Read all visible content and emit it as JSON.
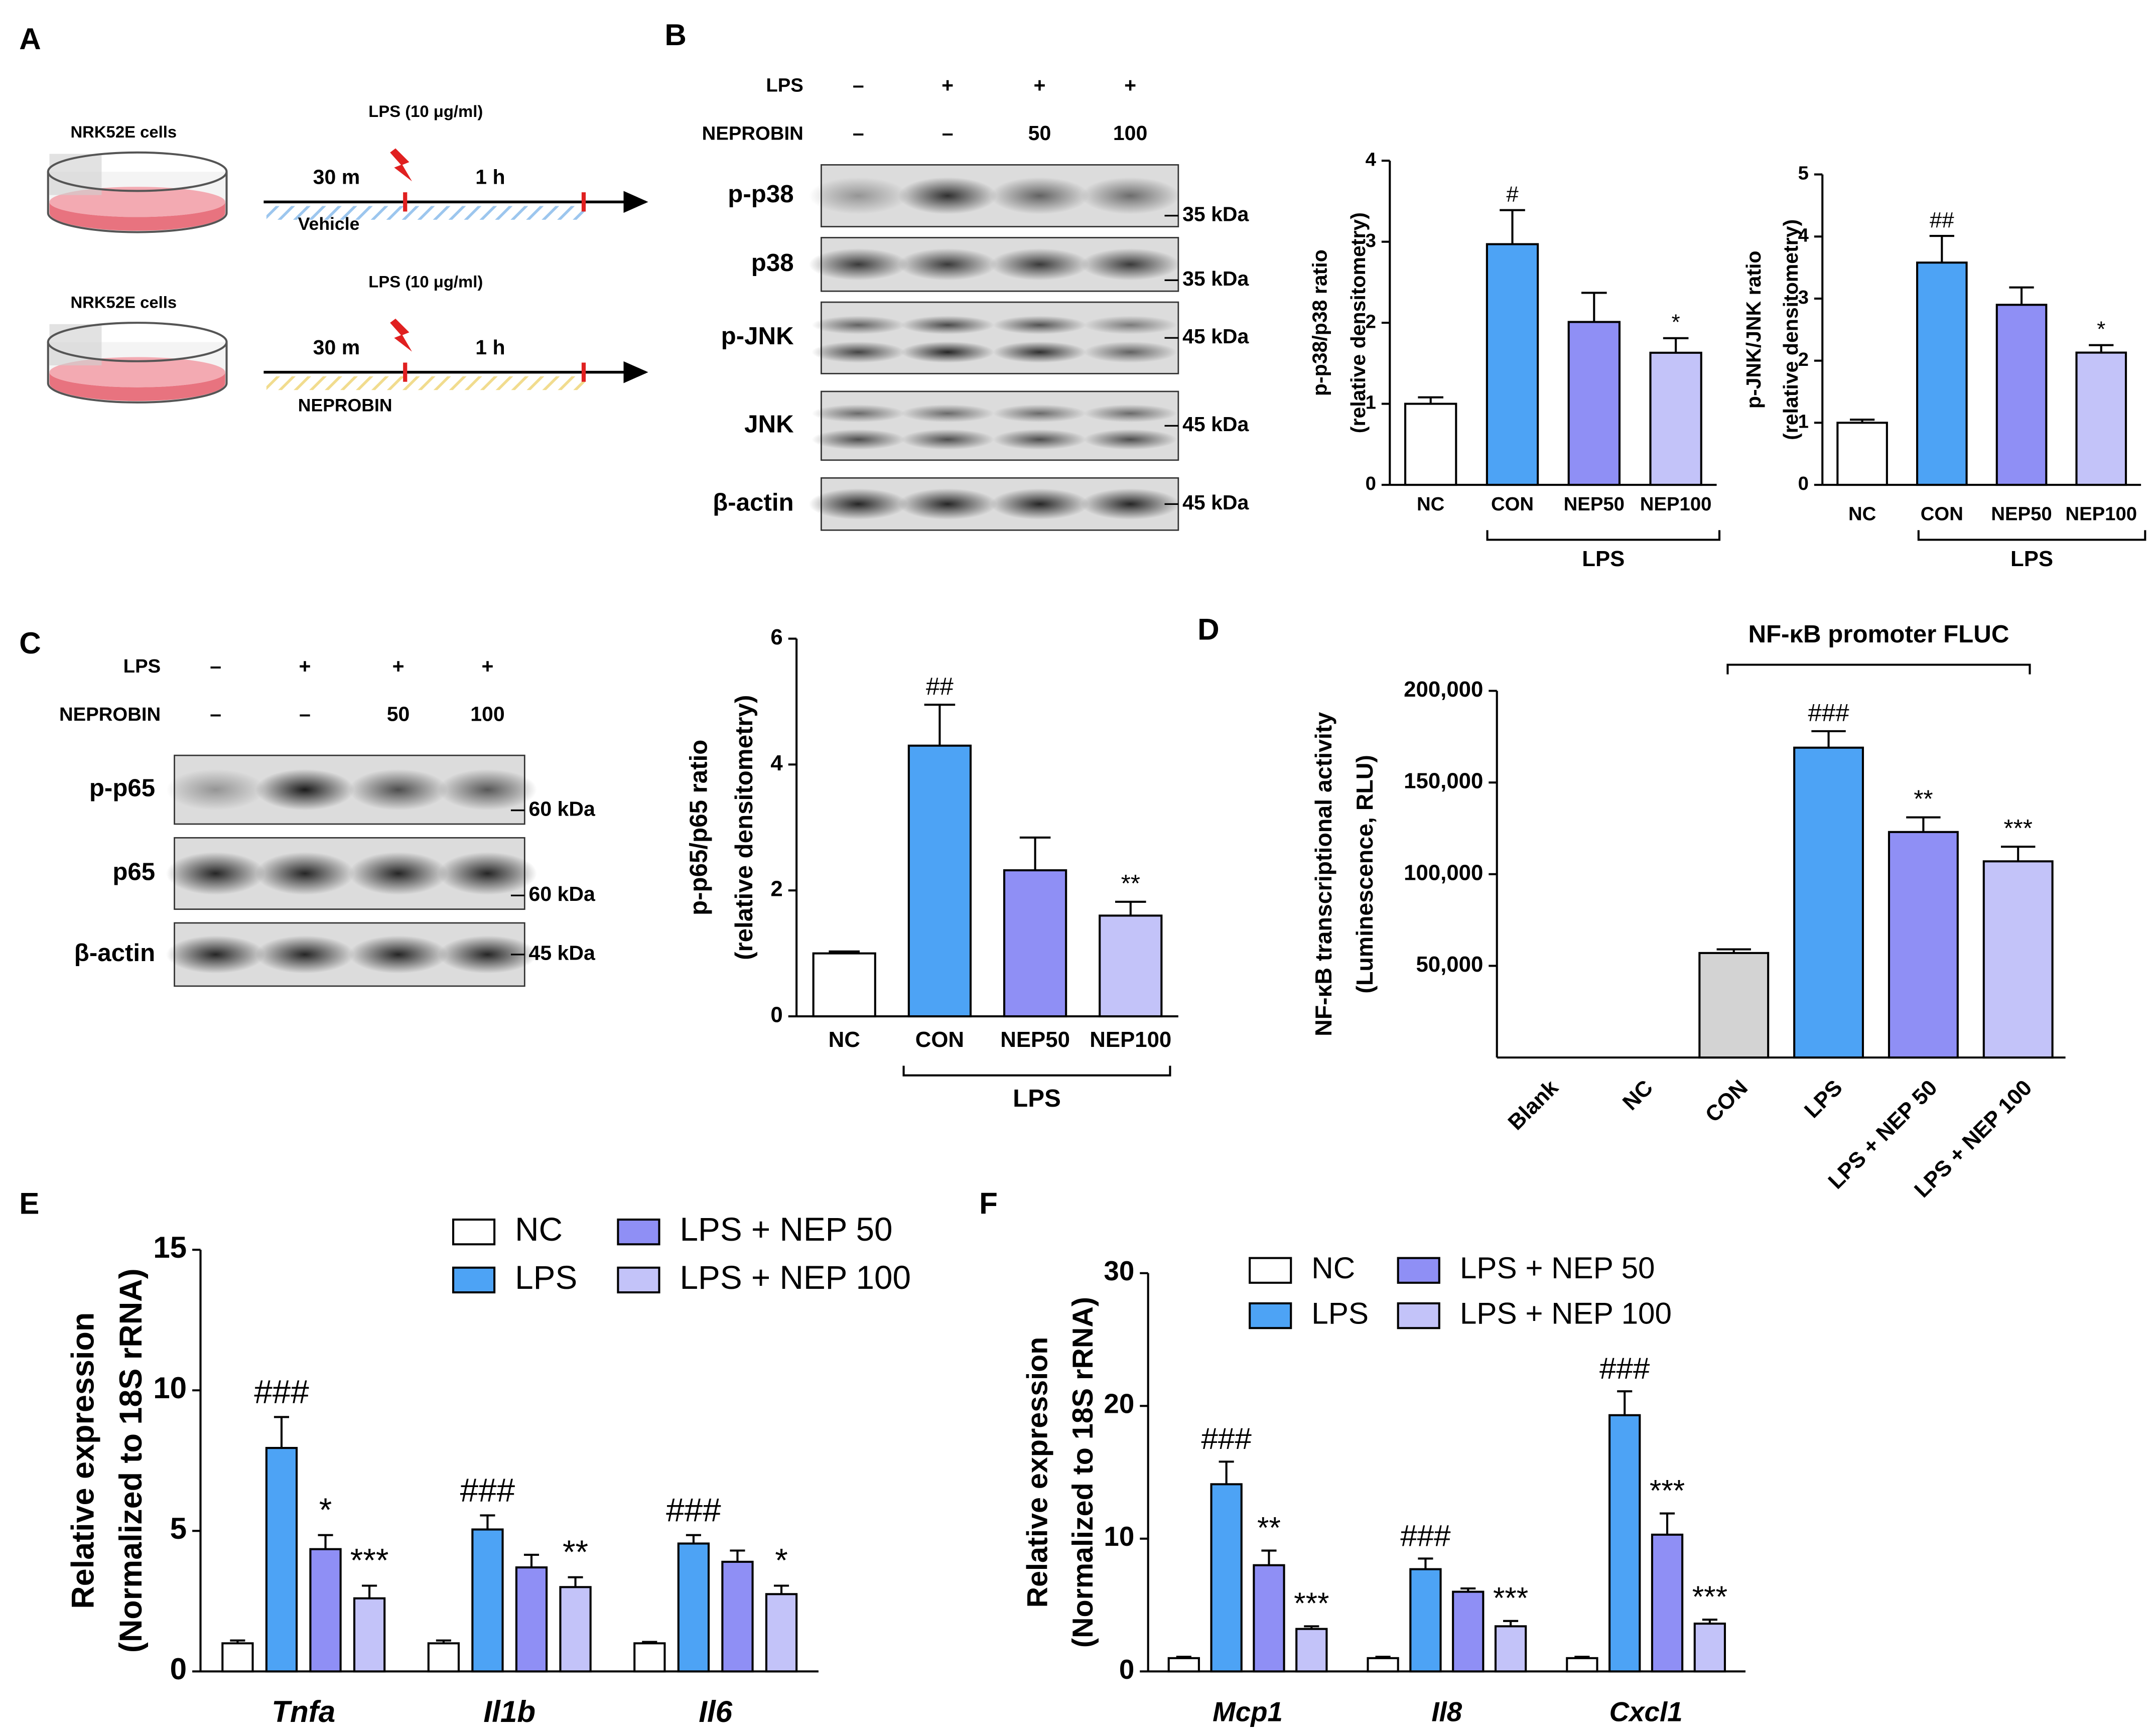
{
  "panel_labels": [
    "A",
    "B",
    "C",
    "D",
    "E",
    "F"
  ],
  "schematic": {
    "steps": [
      {
        "cells": "NRK52E cells",
        "treatment": "LPS (10 μg/ml)",
        "pre": "30 m",
        "post": "1 h",
        "agent": "Vehicle"
      },
      {
        "cells": "NRK52E cells",
        "treatment": "LPS (10 μg/ml)",
        "pre": "30 m",
        "post": "1 h",
        "agent": "NEPROBIN"
      }
    ]
  },
  "blots": [
    {
      "conditions": [
        {
          "name": "LPS",
          "lanes": [
            "–",
            "+",
            "+",
            "+"
          ]
        },
        {
          "name": "NEPROBIN",
          "lanes": [
            "–",
            "–",
            "50",
            "100"
          ]
        }
      ],
      "rows": [
        {
          "name": "p-p38",
          "size": "35 kDa"
        },
        {
          "name": "p38",
          "size": "35 kDa"
        },
        {
          "name": "p-JNK",
          "size": "45 kDa"
        },
        {
          "name": "JNK",
          "size": "45 kDa"
        },
        {
          "name": "β-actin",
          "size": "45 kDa"
        }
      ]
    },
    {
      "conditions": [
        {
          "name": "LPS",
          "lanes": [
            "–",
            "+",
            "+",
            "+"
          ]
        },
        {
          "name": "NEPROBIN",
          "lanes": [
            "–",
            "–",
            "50",
            "100"
          ]
        }
      ],
      "rows": [
        {
          "name": "p-p65",
          "size": "60 kDa"
        },
        {
          "name": "p65",
          "size": "60 kDa"
        },
        {
          "name": "β-actin",
          "size": "45 kDa"
        }
      ]
    }
  ],
  "chart_data": [
    {
      "type": "bar",
      "ylabel": [
        "p-p38/p38 ratio",
        "(relative densitometry)"
      ],
      "categories": [
        "NC",
        "CON",
        "NEP50",
        "NEP100"
      ],
      "values": [
        1.0,
        2.97,
        2.01,
        1.63
      ],
      "errors": [
        0.08,
        0.42,
        0.36,
        0.18
      ],
      "annotations": [
        null,
        "#",
        null,
        "*"
      ],
      "colors": [
        "#ffffff",
        "#4da3f5",
        "#8f8ff5",
        "#c3c3f9"
      ],
      "ylim": [
        0,
        4
      ],
      "yticks": [
        0,
        1,
        2,
        3,
        4
      ],
      "group_label": "LPS"
    },
    {
      "type": "bar",
      "ylabel": [
        "p-JNK/JNK ratio",
        "(relative densitometry)"
      ],
      "categories": [
        "NC",
        "CON",
        "NEP50",
        "NEP100"
      ],
      "values": [
        1.0,
        3.58,
        2.9,
        2.13
      ],
      "errors": [
        0.05,
        0.43,
        0.28,
        0.12
      ],
      "annotations": [
        null,
        "##",
        null,
        "*"
      ],
      "colors": [
        "#ffffff",
        "#4da3f5",
        "#8f8ff5",
        "#c3c3f9"
      ],
      "ylim": [
        0,
        5
      ],
      "yticks": [
        0,
        1,
        2,
        3,
        4,
        5
      ],
      "group_label": "LPS"
    },
    {
      "type": "bar",
      "ylabel": [
        "p-p65/p65 ratio",
        "(relative densitometry)"
      ],
      "categories": [
        "NC",
        "CON",
        "NEP50",
        "NEP100"
      ],
      "values": [
        1.0,
        4.3,
        2.32,
        1.6
      ],
      "errors": [
        0.03,
        0.65,
        0.52,
        0.22
      ],
      "annotations": [
        null,
        "##",
        null,
        "**"
      ],
      "colors": [
        "#ffffff",
        "#4da3f5",
        "#8f8ff5",
        "#c3c3f9"
      ],
      "ylim": [
        0,
        6
      ],
      "yticks": [
        0,
        2,
        4,
        6
      ],
      "group_label": "LPS"
    },
    {
      "type": "bar",
      "ylabel": [
        "NF-κB transcriptional activity",
        "(Luminescence, RLU)"
      ],
      "categories": [
        "Blank",
        "NC",
        "CON",
        "LPS",
        "LPS + NEP 50",
        "LPS + NEP 100"
      ],
      "values": [
        0,
        0,
        57000,
        169000,
        123000,
        107000
      ],
      "errors": [
        null,
        null,
        2000,
        9000,
        8000,
        8000
      ],
      "annotations": [
        null,
        null,
        null,
        "###",
        "**",
        "***"
      ],
      "colors": [
        "#ffffff",
        "#ffffff",
        "#d3d3d3",
        "#4da3f5",
        "#8f8ff5",
        "#c3c3f9"
      ],
      "ylim": [
        0,
        200000
      ],
      "yticks": [
        {
          "value": 50000,
          "label": "50,000"
        },
        {
          "value": 100000,
          "label": "100,000"
        },
        {
          "value": 150000,
          "label": "150,000"
        },
        {
          "value": 200000,
          "label": "200,000"
        }
      ],
      "group_label": "NF-κB promoter FLUC"
    },
    {
      "type": "bar",
      "ylabel": [
        "Relative expression",
        "(Normalized to 18S rRNA)"
      ],
      "categories": [
        "Tnfa",
        "Il1b",
        "Il6"
      ],
      "series": [
        {
          "name": "NC",
          "color": "#ffffff",
          "values": [
            1.0,
            1.0,
            1.0
          ],
          "errors": [
            0.1,
            0.1,
            0.05
          ],
          "annotations": [
            null,
            null,
            null
          ]
        },
        {
          "name": "LPS",
          "color": "#4da3f5",
          "values": [
            7.95,
            5.05,
            4.55
          ],
          "errors": [
            1.1,
            0.5,
            0.3
          ],
          "annotations": [
            "###",
            "###",
            "###"
          ]
        },
        {
          "name": "LPS + NEP 50",
          "color": "#8f8ff5",
          "values": [
            4.35,
            3.7,
            3.9
          ],
          "errors": [
            0.5,
            0.45,
            0.4
          ],
          "annotations": [
            "*",
            null,
            null
          ]
        },
        {
          "name": "LPS + NEP 100",
          "color": "#c3c3f9",
          "values": [
            2.6,
            3.0,
            2.75
          ],
          "errors": [
            0.45,
            0.35,
            0.3
          ],
          "annotations": [
            "***",
            "**",
            "*"
          ]
        }
      ],
      "ylim": [
        0,
        15
      ],
      "yticks": [
        0,
        5,
        10,
        15
      ]
    },
    {
      "type": "bar",
      "ylabel": [
        "Relative expression",
        "(Normalized to 18S rRNA)"
      ],
      "categories": [
        "Mcp1",
        "Il8",
        "Cxcl1"
      ],
      "series": [
        {
          "name": "NC",
          "color": "#ffffff",
          "values": [
            1.0,
            1.0,
            1.0
          ],
          "errors": [
            0.1,
            0.1,
            0.1
          ],
          "annotations": [
            null,
            null,
            null
          ]
        },
        {
          "name": "LPS",
          "color": "#4da3f5",
          "values": [
            14.1,
            7.7,
            19.3
          ],
          "errors": [
            1.7,
            0.8,
            1.8
          ],
          "annotations": [
            "###",
            "###",
            "###"
          ]
        },
        {
          "name": "LPS + NEP 50",
          "color": "#8f8ff5",
          "values": [
            8.0,
            6.0,
            10.3
          ],
          "errors": [
            1.1,
            0.25,
            1.6
          ],
          "annotations": [
            "**",
            null,
            "***"
          ]
        },
        {
          "name": "LPS + NEP 100",
          "color": "#c3c3f9",
          "values": [
            3.2,
            3.4,
            3.6
          ],
          "errors": [
            0.2,
            0.4,
            0.3
          ],
          "annotations": [
            "***",
            "***",
            "***"
          ]
        }
      ],
      "ylim": [
        0,
        30
      ],
      "yticks": [
        0,
        10,
        20,
        30
      ]
    }
  ]
}
